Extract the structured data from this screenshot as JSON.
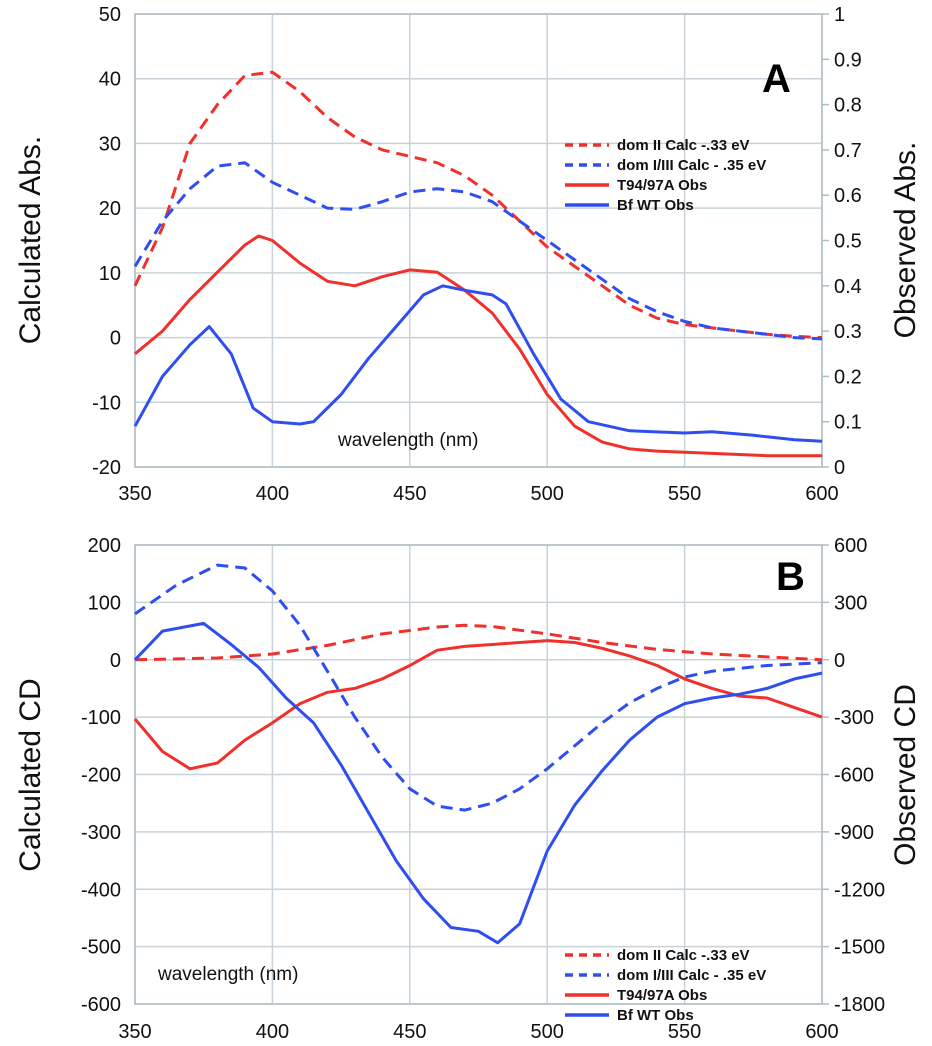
{
  "chart_data": [
    {
      "type": "line",
      "panel_label": "A",
      "xlabel": "wavelength (nm)",
      "ylabel": "Calculated Abs.",
      "y2label": "Observed Abs.",
      "xlim": [
        350,
        600
      ],
      "ylim": [
        -20,
        50
      ],
      "y2lim": [
        0,
        1
      ],
      "xticks": [
        350,
        400,
        450,
        500,
        550,
        600
      ],
      "yticks": [
        -20,
        -10,
        0,
        10,
        20,
        30,
        40,
        50
      ],
      "y2ticks": [
        0,
        0.1,
        0.2,
        0.3,
        0.4,
        0.5,
        0.6,
        0.7,
        0.8,
        0.9,
        1
      ],
      "grid": true,
      "legend_position": "right",
      "series": [
        {
          "name": "dom II Calc -.33 eV",
          "axis": "left",
          "color": "#f0302a",
          "dash": true,
          "x": [
            350,
            360,
            370,
            380,
            390,
            400,
            410,
            420,
            430,
            440,
            450,
            460,
            470,
            480,
            490,
            500,
            510,
            520,
            530,
            540,
            550,
            560,
            570,
            580,
            590,
            600
          ],
          "y": [
            8,
            17,
            30,
            36,
            40.5,
            41,
            38,
            34,
            31,
            29,
            28,
            27,
            25,
            22,
            18,
            14,
            11,
            8,
            5,
            3,
            2,
            1.5,
            1,
            0.5,
            0.2,
            0
          ]
        },
        {
          "name": "dom I/III Calc - .35 eV",
          "axis": "left",
          "color": "#2f4ef0",
          "dash": true,
          "x": [
            350,
            360,
            370,
            380,
            390,
            400,
            410,
            420,
            430,
            440,
            450,
            460,
            470,
            480,
            490,
            500,
            510,
            520,
            530,
            540,
            550,
            560,
            570,
            580,
            590,
            600
          ],
          "y": [
            11,
            18,
            23,
            26.5,
            27,
            24,
            22,
            20,
            19.8,
            21,
            22.5,
            23,
            22.5,
            21,
            18,
            15,
            12,
            9,
            6,
            4,
            2.5,
            1.5,
            1,
            0.5,
            0,
            -0.2
          ]
        },
        {
          "name": "T94/97A Obs",
          "axis": "right",
          "color": "#f0302a",
          "dash": false,
          "x": [
            350,
            360,
            370,
            380,
            390,
            395,
            400,
            410,
            420,
            430,
            440,
            450,
            460,
            470,
            480,
            490,
            500,
            510,
            520,
            530,
            540,
            560,
            580,
            600
          ],
          "y": [
            0.25,
            0.3,
            0.37,
            0.43,
            0.49,
            0.51,
            0.5,
            0.45,
            0.41,
            0.4,
            0.42,
            0.435,
            0.43,
            0.39,
            0.34,
            0.26,
            0.16,
            0.09,
            0.055,
            0.04,
            0.035,
            0.03,
            0.025,
            0.025
          ]
        },
        {
          "name": "Bf WT Obs",
          "axis": "right",
          "color": "#2f4ef0",
          "dash": false,
          "x": [
            350,
            360,
            370,
            377,
            385,
            393,
            400,
            410,
            415,
            425,
            435,
            445,
            455,
            462,
            470,
            480,
            485,
            495,
            505,
            515,
            530,
            550,
            560,
            575,
            590,
            600
          ],
          "y": [
            0.09,
            0.2,
            0.27,
            0.31,
            0.25,
            0.13,
            0.1,
            0.095,
            0.1,
            0.16,
            0.24,
            0.31,
            0.38,
            0.4,
            0.39,
            0.38,
            0.36,
            0.25,
            0.15,
            0.1,
            0.08,
            0.075,
            0.078,
            0.07,
            0.06,
            0.057
          ]
        }
      ]
    },
    {
      "type": "line",
      "panel_label": "B",
      "xlabel": "wavelength (nm)",
      "ylabel": "Calculated CD",
      "y2label": "Observed CD",
      "xlim": [
        350,
        600
      ],
      "ylim": [
        -600,
        200
      ],
      "y2lim": [
        -1800,
        600
      ],
      "xticks": [
        350,
        400,
        450,
        500,
        550,
        600
      ],
      "yticks": [
        -600,
        -500,
        -400,
        -300,
        -200,
        -100,
        0,
        100,
        200
      ],
      "y2ticks": [
        -1800,
        -1500,
        -1200,
        -900,
        -600,
        -300,
        0,
        300,
        600
      ],
      "grid": true,
      "legend_position": "bottom-right",
      "series": [
        {
          "name": "dom II Calc -.33 eV",
          "axis": "left",
          "color": "#f0302a",
          "dash": true,
          "x": [
            350,
            380,
            400,
            420,
            440,
            460,
            470,
            480,
            500,
            520,
            540,
            560,
            580,
            600
          ],
          "y": [
            0,
            3,
            10,
            25,
            45,
            57,
            60,
            58,
            45,
            30,
            18,
            10,
            5,
            0
          ]
        },
        {
          "name": "dom I/III Calc - .35 eV",
          "axis": "left",
          "color": "#2f4ef0",
          "dash": true,
          "x": [
            350,
            365,
            380,
            390,
            400,
            410,
            420,
            430,
            440,
            450,
            460,
            470,
            480,
            490,
            500,
            510,
            520,
            530,
            540,
            550,
            560,
            580,
            600
          ],
          "y": [
            80,
            130,
            165,
            160,
            120,
            60,
            -20,
            -100,
            -170,
            -225,
            -255,
            -262,
            -250,
            -225,
            -190,
            -150,
            -110,
            -75,
            -50,
            -30,
            -20,
            -10,
            -5
          ]
        },
        {
          "name": "T94/97A Obs",
          "axis": "right",
          "color": "#f0302a",
          "dash": false,
          "x": [
            350,
            360,
            370,
            380,
            390,
            400,
            410,
            420,
            430,
            440,
            450,
            460,
            470,
            480,
            490,
            500,
            510,
            520,
            530,
            540,
            550,
            560,
            570,
            580,
            590,
            600
          ],
          "y": [
            -310,
            -480,
            -570,
            -540,
            -420,
            -330,
            -230,
            -170,
            -150,
            -100,
            -30,
            50,
            70,
            80,
            90,
            100,
            90,
            60,
            20,
            -30,
            -100,
            -150,
            -190,
            -200,
            -250,
            -300
          ]
        },
        {
          "name": "Bf WT Obs",
          "axis": "right",
          "color": "#2f4ef0",
          "dash": false,
          "x": [
            350,
            360,
            375,
            385,
            395,
            405,
            415,
            425,
            435,
            445,
            455,
            465,
            475,
            482,
            490,
            500,
            510,
            520,
            530,
            540,
            550,
            560,
            570,
            580,
            590,
            600
          ],
          "y": [
            0,
            150,
            190,
            80,
            -40,
            -200,
            -330,
            -550,
            -800,
            -1050,
            -1250,
            -1400,
            -1420,
            -1480,
            -1380,
            -1000,
            -760,
            -580,
            -420,
            -300,
            -230,
            -200,
            -180,
            -150,
            -100,
            -70
          ]
        }
      ]
    }
  ]
}
